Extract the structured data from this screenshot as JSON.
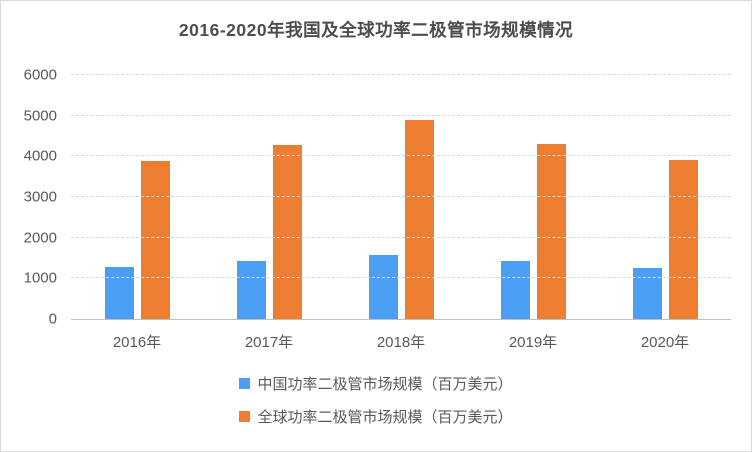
{
  "chart_data": {
    "type": "bar",
    "title": "2016-2020年我国及全球功率二极管市场规模情况",
    "categories": [
      "2016年",
      "2017年",
      "2018年",
      "2019年",
      "2020年"
    ],
    "series": [
      {
        "name": "中国功率二极管市场规模（百万美元）",
        "color": "#4a9ff5",
        "values": [
          1290,
          1420,
          1580,
          1430,
          1260
        ]
      },
      {
        "name": "全球功率二极管市场规模（百万美元）",
        "color": "#ed7d31",
        "values": [
          3880,
          4280,
          4890,
          4310,
          3910
        ]
      }
    ],
    "xlabel": "",
    "ylabel": "",
    "ylim": [
      0,
      6000
    ],
    "yticks": [
      0,
      1000,
      2000,
      3000,
      4000,
      5000,
      6000
    ],
    "grid": true,
    "legend_position": "bottom"
  },
  "colors": {
    "title_text": "#4d4d4d",
    "axis_text": "#595959",
    "gridline": "#d9d9d9",
    "axis_line": "#bfbfbf",
    "frame_border": "#d9d9d9",
    "background": "#ffffff"
  }
}
